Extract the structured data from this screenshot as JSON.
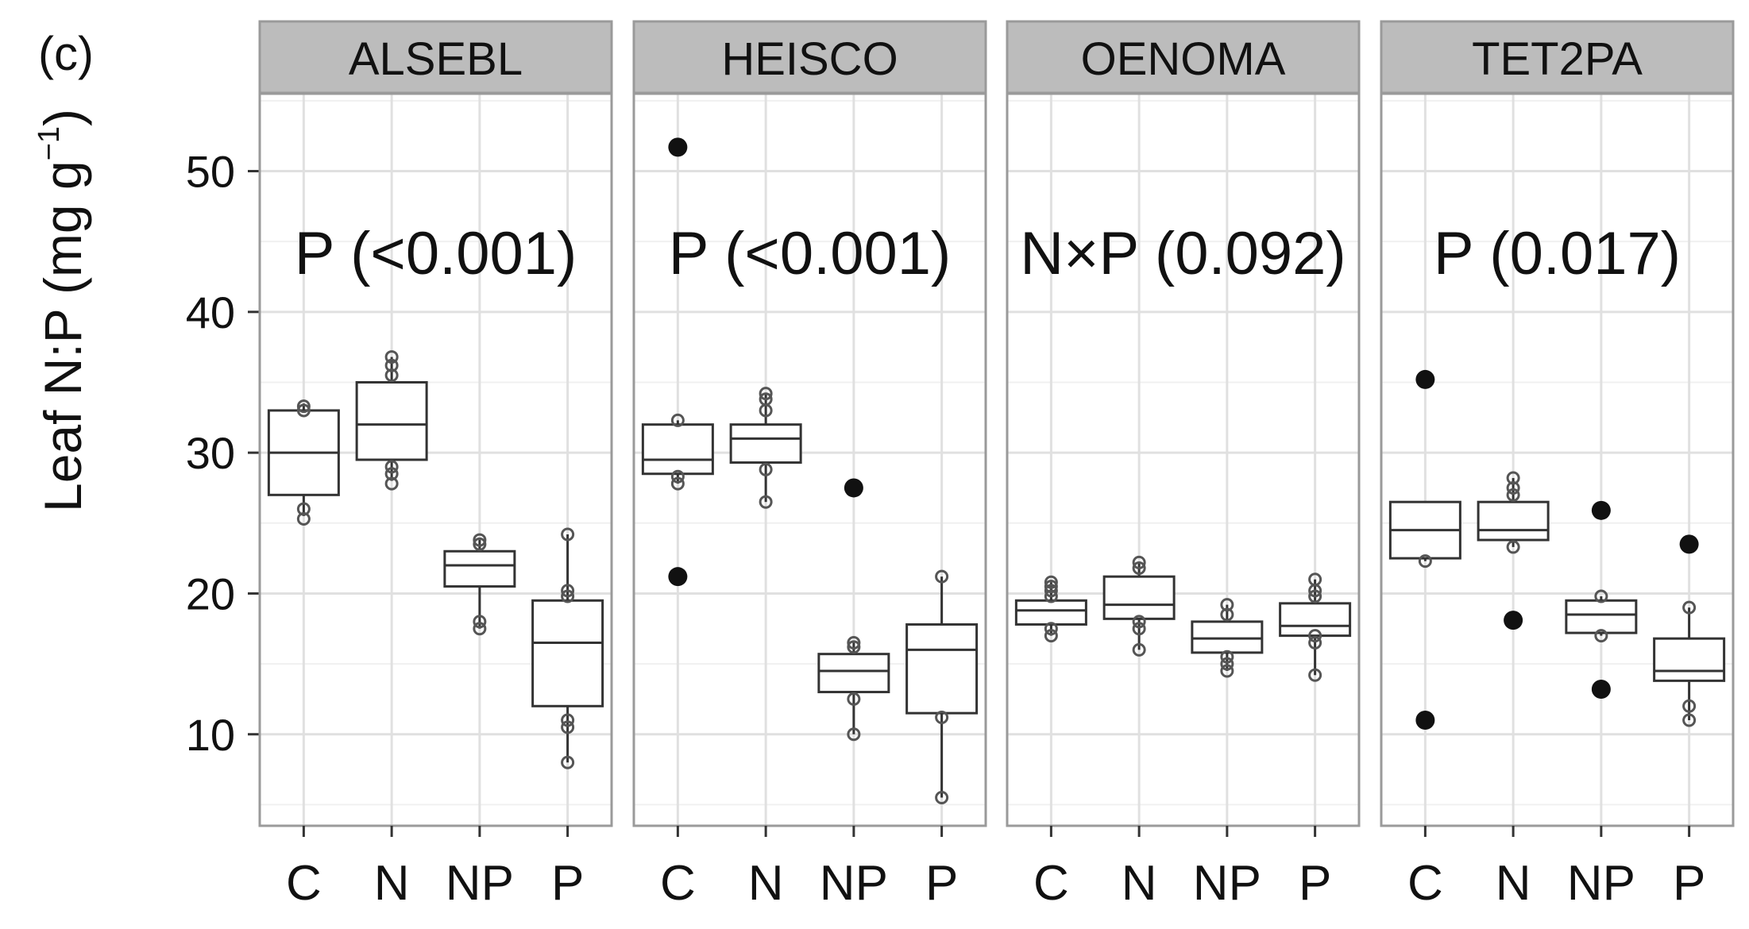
{
  "panel_tag": "(c)",
  "chart_data": {
    "type": "boxplot",
    "ylabel_main": "Leaf  N:P (mg g",
    "ylabel_sup": "−1",
    "ylabel_close": ")",
    "ylim": [
      3.5,
      55.5
    ],
    "yticks": [
      10,
      20,
      30,
      40,
      50
    ],
    "categories": [
      "C",
      "N",
      "NP",
      "P"
    ],
    "grid": true,
    "facets": [
      {
        "name": "ALSEBL",
        "annotation": "P (<0.001)",
        "boxes": [
          {
            "category": "C",
            "whislo": 25.5,
            "q1": 27,
            "median": 30,
            "q3": 33,
            "whishi": 33.5,
            "points": [
              25.3,
              26,
              33,
              33.3
            ],
            "outliers": []
          },
          {
            "category": "N",
            "whislo": 28,
            "q1": 29.5,
            "median": 32,
            "q3": 35,
            "whishi": 36.8,
            "points": [
              27.8,
              28.5,
              29,
              35.5,
              36.2,
              36.8
            ],
            "outliers": []
          },
          {
            "category": "NP",
            "whislo": 17.5,
            "q1": 20.5,
            "median": 22,
            "q3": 23,
            "whishi": 23.8,
            "points": [
              17.5,
              18,
              23.5,
              23.8
            ],
            "outliers": []
          },
          {
            "category": "P",
            "whislo": 8,
            "q1": 12,
            "median": 16.5,
            "q3": 19.5,
            "whishi": 24.2,
            "points": [
              8,
              10.5,
              11,
              19.8,
              20.2,
              24.2
            ],
            "outliers": []
          }
        ]
      },
      {
        "name": "HEISCO",
        "annotation": "P (<0.001)",
        "boxes": [
          {
            "category": "C",
            "whislo": 27.8,
            "q1": 28.5,
            "median": 29.5,
            "q3": 32,
            "whishi": 32.3,
            "points": [
              27.8,
              28.3,
              32.3
            ],
            "outliers": [
              21.2,
              51.7
            ]
          },
          {
            "category": "N",
            "whislo": 26.5,
            "q1": 29.3,
            "median": 31,
            "q3": 32,
            "whishi": 34.2,
            "points": [
              26.5,
              28.8,
              33,
              33.8,
              34.2
            ],
            "outliers": []
          },
          {
            "category": "NP",
            "whislo": 10,
            "q1": 13,
            "median": 14.5,
            "q3": 15.7,
            "whishi": 16.5,
            "points": [
              10,
              12.5,
              16.2,
              16.5
            ],
            "outliers": [
              27.5
            ]
          },
          {
            "category": "P",
            "whislo": 5.5,
            "q1": 11.5,
            "median": 16,
            "q3": 17.8,
            "whishi": 21.2,
            "points": [
              5.5,
              11.2,
              21.2
            ],
            "outliers": []
          }
        ]
      },
      {
        "name": "OENOMA",
        "annotation": "N×P (0.092)",
        "boxes": [
          {
            "category": "C",
            "whislo": 17,
            "q1": 17.8,
            "median": 18.8,
            "q3": 19.5,
            "whishi": 20.8,
            "points": [
              17,
              17.5,
              19.8,
              20.2,
              20.5,
              20.8
            ],
            "outliers": []
          },
          {
            "category": "N",
            "whislo": 16,
            "q1": 18.2,
            "median": 19.2,
            "q3": 21.2,
            "whishi": 22.2,
            "points": [
              16,
              17.5,
              18,
              21.8,
              22.2
            ],
            "outliers": []
          },
          {
            "category": "NP",
            "whislo": 14.5,
            "q1": 15.8,
            "median": 16.8,
            "q3": 18,
            "whishi": 19.2,
            "points": [
              14.5,
              15,
              15.5,
              18.5,
              19.2
            ],
            "outliers": []
          },
          {
            "category": "P",
            "whislo": 14.2,
            "q1": 17,
            "median": 17.7,
            "q3": 19.3,
            "whishi": 21,
            "points": [
              14.2,
              16.5,
              17,
              19.8,
              20.2,
              21
            ],
            "outliers": []
          }
        ]
      },
      {
        "name": "TET2PA",
        "annotation": "P (0.017)",
        "boxes": [
          {
            "category": "C",
            "whislo": 22.3,
            "q1": 22.5,
            "median": 24.5,
            "q3": 26.5,
            "whishi": 26.5,
            "points": [
              22.3
            ],
            "outliers": [
              11,
              35.2
            ]
          },
          {
            "category": "N",
            "whislo": 23.3,
            "q1": 23.8,
            "median": 24.5,
            "q3": 26.5,
            "whishi": 28.2,
            "points": [
              23.3,
              27,
              27.5,
              28.2
            ],
            "outliers": [
              18.1
            ]
          },
          {
            "category": "NP",
            "whislo": 17,
            "q1": 17.2,
            "median": 18.5,
            "q3": 19.5,
            "whishi": 19.8,
            "points": [
              17,
              19.8
            ],
            "outliers": [
              13.2,
              25.9
            ]
          },
          {
            "category": "P",
            "whislo": 11,
            "q1": 13.8,
            "median": 14.5,
            "q3": 16.8,
            "whishi": 19,
            "points": [
              11,
              12,
              19
            ],
            "outliers": [
              23.5
            ]
          }
        ]
      }
    ]
  }
}
